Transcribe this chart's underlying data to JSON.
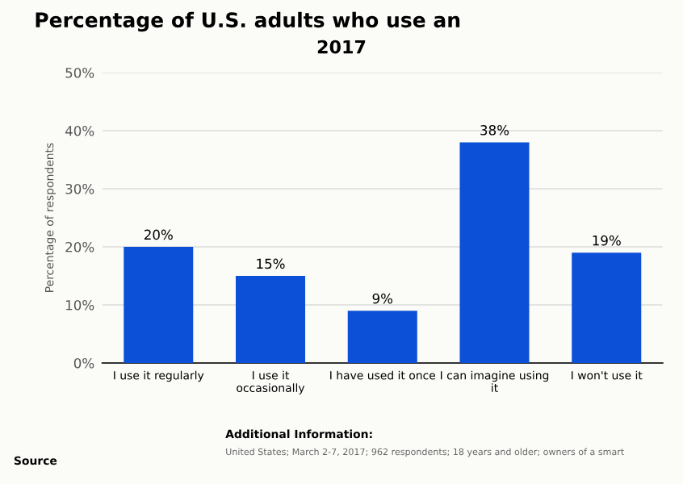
{
  "chart_data": {
    "type": "bar",
    "title": "Percentage of U.S. adults who use an",
    "subtitle": "2017",
    "ylabel": "Percentage of respondents",
    "categories": [
      "I use it regularly",
      "I use it occasionally",
      "I have used it once",
      "I can imagine using it",
      "I won't use it"
    ],
    "values": [
      20,
      15,
      9,
      38,
      19
    ],
    "value_labels": [
      "20%",
      "15%",
      "9%",
      "38%",
      "19%"
    ],
    "color": "#0b50d6",
    "ylim": [
      0,
      50
    ],
    "yticks": [
      {
        "value": 0,
        "label": "0%"
      },
      {
        "value": 10,
        "label": "10%"
      },
      {
        "value": 20,
        "label": "20%"
      },
      {
        "value": 30,
        "label": "30%"
      },
      {
        "value": 40,
        "label": "40%"
      },
      {
        "value": 50,
        "label": "50%"
      }
    ],
    "grid": "y",
    "annotations": [
      "Additional Information:",
      "United States; March 2-7, 2017; 962 respondents; 18 years and older; owners of a smart",
      "Source"
    ]
  }
}
